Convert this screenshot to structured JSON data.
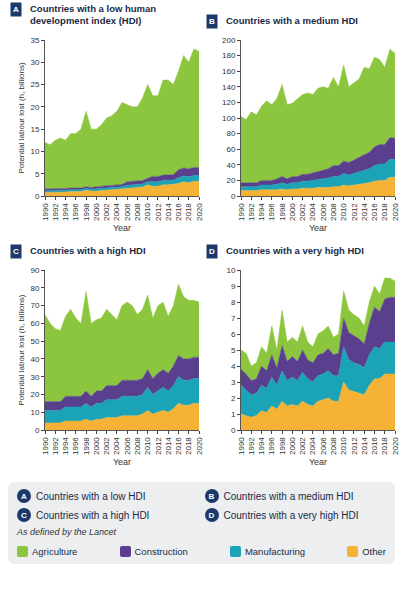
{
  "chart_data": [
    {
      "type": "area",
      "label": "A",
      "title": "Countries with a low human development index (HDI)",
      "x_label": "Year",
      "y_label": "Potential labour lost (h, billions)",
      "stacked": true,
      "grid": false,
      "x": [
        1990,
        1991,
        1992,
        1993,
        1994,
        1995,
        1996,
        1997,
        1998,
        1999,
        2000,
        2001,
        2002,
        2003,
        2004,
        2005,
        2006,
        2007,
        2008,
        2009,
        2010,
        2011,
        2012,
        2013,
        2014,
        2015,
        2016,
        2017,
        2018,
        2019,
        2020
      ],
      "xlim": [
        1990,
        2020
      ],
      "xticks": [
        1990,
        1992,
        1994,
        1996,
        1998,
        2000,
        2002,
        2004,
        2006,
        2008,
        2010,
        2012,
        2014,
        2016,
        2018,
        2020
      ],
      "ylim": [
        0,
        35
      ],
      "yticks": [
        0,
        5,
        10,
        15,
        20,
        25,
        30,
        35
      ],
      "series": [
        {
          "name": "Agriculture",
          "color": "#8cc63e",
          "values": [
            10.4,
            9.9,
            10.8,
            11.3,
            10.8,
            12.2,
            12.2,
            13.2,
            16.9,
            13.1,
            12.9,
            13.8,
            15.2,
            15.6,
            16.5,
            18.4,
            17.3,
            16.7,
            16.7,
            18.5,
            21,
            18.1,
            18.1,
            21.3,
            21.3,
            20.2,
            22.1,
            25.2,
            23.9,
            26.6,
            26.1
          ]
        },
        {
          "name": "Construction",
          "color": "#5b3f8f",
          "values": [
            0.4,
            0.4,
            0.4,
            0.4,
            0.4,
            0.4,
            0.4,
            0.4,
            0.4,
            0.4,
            0.5,
            0.5,
            0.5,
            0.5,
            0.5,
            0.5,
            0.8,
            0.8,
            0.8,
            0.8,
            0.8,
            1.2,
            1.2,
            1.2,
            1.2,
            1.2,
            1.8,
            1.8,
            1.8,
            1.8,
            1.8
          ]
        },
        {
          "name": "Manufacturing",
          "color": "#1ba3b8",
          "values": [
            0.4,
            0.4,
            0.4,
            0.4,
            0.4,
            0.4,
            0.4,
            0.4,
            0.4,
            0.4,
            0.5,
            0.5,
            0.5,
            0.5,
            0.5,
            0.5,
            0.7,
            0.7,
            0.7,
            0.7,
            0.7,
            1.0,
            1.0,
            1.0,
            1.0,
            1.0,
            1.3,
            1.3,
            1.3,
            1.3,
            1.3
          ]
        },
        {
          "name": "Other",
          "color": "#f5b335",
          "values": [
            0.8,
            0.8,
            0.9,
            0.9,
            0.9,
            1,
            1,
            1,
            1.3,
            1.1,
            1.1,
            1.2,
            1.3,
            1.4,
            1.5,
            1.6,
            1.7,
            1.8,
            1.8,
            2,
            2.5,
            2.2,
            2.2,
            2.5,
            2.5,
            2.6,
            2.8,
            3.2,
            3,
            3.3,
            3.3
          ]
        }
      ]
    },
    {
      "type": "area",
      "label": "B",
      "title": "Countries with a medium HDI",
      "x_label": "Year",
      "stacked": true,
      "grid": false,
      "x": [
        1990,
        1991,
        1992,
        1993,
        1994,
        1995,
        1996,
        1997,
        1998,
        1999,
        2000,
        2001,
        2002,
        2003,
        2004,
        2005,
        2006,
        2007,
        2008,
        2009,
        2010,
        2011,
        2012,
        2013,
        2014,
        2015,
        2016,
        2017,
        2018,
        2019,
        2020
      ],
      "xlim": [
        1990,
        2020
      ],
      "xticks": [
        1990,
        1992,
        1994,
        1996,
        1998,
        2000,
        2002,
        2004,
        2006,
        2008,
        2010,
        2012,
        2014,
        2016,
        2018,
        2020
      ],
      "ylim": [
        0,
        200
      ],
      "yticks": [
        0,
        20,
        40,
        60,
        80,
        100,
        120,
        140,
        160,
        180,
        200
      ],
      "series": [
        {
          "name": "Agriculture",
          "color": "#8cc63e",
          "values": [
            85,
            81,
            91,
            87,
            95,
            102,
            97,
            103,
            118,
            95,
            94,
            100,
            102,
            104,
            100,
            106,
            106,
            103,
            113,
            101,
            123,
            97,
            99,
            100,
            112,
            107,
            115,
            109,
            99,
            113,
            109
          ]
        },
        {
          "name": "Construction",
          "color": "#5b3f8f",
          "values": [
            5,
            5,
            5,
            5,
            6,
            6,
            6,
            7,
            8,
            7,
            8,
            8,
            9,
            9,
            10,
            11,
            12,
            12,
            14,
            14,
            16,
            16,
            17,
            19,
            20,
            21,
            24,
            25,
            25,
            28,
            27
          ]
        },
        {
          "name": "Manufacturing",
          "color": "#1ba3b8",
          "values": [
            5,
            5,
            5,
            5,
            6,
            6,
            6,
            7,
            8,
            7,
            8,
            8,
            9,
            9,
            10,
            10,
            11,
            12,
            13,
            13,
            15,
            14,
            15,
            16,
            17,
            18,
            20,
            21,
            21,
            23,
            23
          ]
        },
        {
          "name": "Other",
          "color": "#f5b335",
          "values": [
            7,
            7,
            7,
            7,
            8,
            8,
            8,
            8,
            9,
            8,
            9,
            9,
            10,
            10,
            10,
            11,
            11,
            11,
            12,
            12,
            14,
            13,
            14,
            15,
            16,
            17,
            19,
            20,
            20,
            24,
            24
          ]
        }
      ]
    },
    {
      "type": "area",
      "label": "C",
      "title": "Countries with a high HDI",
      "x_label": "Year",
      "y_label": "Potential labour lost (h, billions)",
      "stacked": true,
      "grid": false,
      "x": [
        1990,
        1991,
        1992,
        1993,
        1994,
        1995,
        1996,
        1997,
        1998,
        1999,
        2000,
        2001,
        2002,
        2003,
        2004,
        2005,
        2006,
        2007,
        2008,
        2009,
        2010,
        2011,
        2012,
        2013,
        2014,
        2015,
        2016,
        2017,
        2018,
        2019,
        2020
      ],
      "xlim": [
        1990,
        2020
      ],
      "xticks": [
        1990,
        1992,
        1994,
        1996,
        1998,
        2000,
        2002,
        2004,
        2006,
        2008,
        2010,
        2012,
        2014,
        2016,
        2018,
        2020
      ],
      "ylim": [
        0,
        90
      ],
      "yticks": [
        0,
        10,
        20,
        30,
        40,
        50,
        60,
        70,
        80,
        90
      ],
      "series": [
        {
          "name": "Agriculture",
          "color": "#8cc63e",
          "values": [
            49,
            44,
            41,
            40,
            45,
            49,
            44,
            41,
            56,
            41,
            40,
            41,
            43,
            40,
            37,
            42,
            44,
            42,
            37,
            39,
            42,
            34,
            38,
            38,
            32,
            34,
            40,
            35,
            33,
            32,
            31
          ]
        },
        {
          "name": "Construction",
          "color": "#5b3f8f",
          "values": [
            5,
            5,
            5,
            5,
            6,
            6,
            6,
            6,
            7,
            6,
            7,
            7,
            8,
            8,
            8,
            9,
            9,
            9,
            9,
            9,
            10,
            9,
            10,
            10,
            10,
            11,
            12,
            12,
            12,
            12,
            12
          ]
        },
        {
          "name": "Manufacturing",
          "color": "#1ba3b8",
          "values": [
            7,
            7,
            7,
            7,
            8,
            8,
            8,
            8,
            9,
            8,
            9,
            9,
            10,
            10,
            10,
            11,
            11,
            11,
            11,
            11,
            13,
            11,
            12,
            13,
            12,
            13,
            15,
            14,
            14,
            14,
            14
          ]
        },
        {
          "name": "Other",
          "color": "#f5b335",
          "values": [
            4,
            4,
            4,
            4,
            5,
            5,
            5,
            5,
            6,
            5,
            6,
            6,
            7,
            7,
            7,
            8,
            8,
            8,
            8,
            9,
            11,
            9,
            10,
            11,
            10,
            12,
            15,
            14,
            14,
            15,
            15
          ]
        }
      ]
    },
    {
      "type": "area",
      "label": "D",
      "title": "Countries with a very high HDI",
      "x_label": "Year",
      "stacked": true,
      "grid": false,
      "x": [
        1990,
        1991,
        1992,
        1993,
        1994,
        1995,
        1996,
        1997,
        1998,
        1999,
        2000,
        2001,
        2002,
        2003,
        2004,
        2005,
        2006,
        2007,
        2008,
        2009,
        2010,
        2011,
        2012,
        2013,
        2014,
        2015,
        2016,
        2017,
        2018,
        2019,
        2020
      ],
      "xlim": [
        1990,
        2020
      ],
      "xticks": [
        1990,
        1992,
        1994,
        1996,
        1998,
        2000,
        2002,
        2004,
        2006,
        2008,
        2010,
        2012,
        2014,
        2016,
        2018,
        2020
      ],
      "ylim": [
        0,
        10
      ],
      "yticks": [
        0,
        1,
        2,
        3,
        4,
        5,
        6,
        7,
        8,
        9,
        10
      ],
      "series": [
        {
          "name": "Agriculture",
          "color": "#8cc63e",
          "values": [
            1.2,
            1.3,
            0.9,
            1.0,
            1.2,
            1.1,
            1.8,
            1.1,
            2.2,
            1.2,
            1.2,
            1.2,
            1.5,
            1.1,
            1.0,
            1.3,
            1.4,
            1.4,
            1.1,
            1.2,
            1.7,
            1.4,
            1.3,
            1.3,
            1.1,
            1.3,
            1.3,
            1.1,
            1.3,
            1.2,
            1.0
          ]
        },
        {
          "name": "Construction",
          "color": "#5b3f8f",
          "values": [
            1,
            1,
            0.9,
            0.9,
            1.2,
            1.1,
            1.4,
            1.1,
            1.6,
            1.2,
            1.3,
            1.2,
            1.4,
            1.2,
            1.2,
            1.3,
            1.3,
            1.4,
            1.3,
            1.4,
            1.8,
            1.7,
            1.7,
            1.6,
            1.5,
            2,
            2.5,
            2.3,
            2.7,
            2.8,
            2.8
          ]
        },
        {
          "name": "Manufacturing",
          "color": "#1ba3b8",
          "values": [
            1.8,
            1.6,
            1.4,
            1.4,
            1.6,
            1.5,
            1.8,
            1.5,
            1.9,
            1.6,
            1.7,
            1.6,
            1.8,
            1.6,
            1.5,
            1.6,
            1.6,
            1.7,
            1.6,
            1.6,
            2.2,
            1.9,
            1.8,
            1.8,
            1.7,
            1.9,
            2,
            1.9,
            2,
            2,
            2
          ]
        },
        {
          "name": "Other",
          "color": "#f5b335",
          "values": [
            1.0,
            0.9,
            0.8,
            0.9,
            1.2,
            1.1,
            1.5,
            1.3,
            1.8,
            1.5,
            1.6,
            1.5,
            1.8,
            1.6,
            1.5,
            1.8,
            1.9,
            2,
            1.8,
            1.8,
            3,
            2.5,
            2.4,
            2.3,
            2.2,
            2.8,
            3.2,
            3.2,
            3.5,
            3.5,
            3.5
          ]
        }
      ]
    }
  ],
  "legend_box": {
    "panels": [
      {
        "label": "A",
        "text": "Countries with a low HDI"
      },
      {
        "label": "B",
        "text": "Countries with a medium HDI"
      },
      {
        "label": "C",
        "text": "Countries with a high HDI"
      },
      {
        "label": "D",
        "text": "Countries with a very high HDI"
      }
    ],
    "note": "As defined by the Lancet"
  }
}
